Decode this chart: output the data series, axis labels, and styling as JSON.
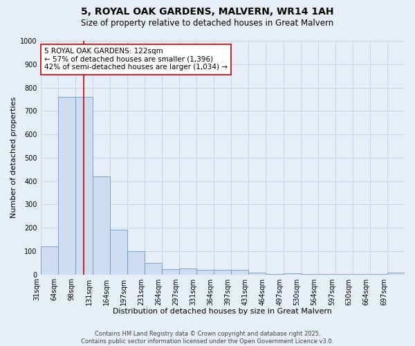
{
  "title": "5, ROYAL OAK GARDENS, MALVERN, WR14 1AH",
  "subtitle": "Size of property relative to detached houses in Great Malvern",
  "xlabel": "Distribution of detached houses by size in Great Malvern",
  "ylabel": "Number of detached properties",
  "bin_labels": [
    "31sqm",
    "64sqm",
    "98sqm",
    "131sqm",
    "164sqm",
    "197sqm",
    "231sqm",
    "264sqm",
    "297sqm",
    "331sqm",
    "364sqm",
    "397sqm",
    "431sqm",
    "464sqm",
    "497sqm",
    "530sqm",
    "564sqm",
    "597sqm",
    "630sqm",
    "664sqm",
    "697sqm"
  ],
  "bar_heights": [
    120,
    760,
    760,
    420,
    190,
    100,
    48,
    22,
    25,
    20,
    20,
    20,
    8,
    3,
    5,
    2,
    2,
    2,
    2,
    2,
    8
  ],
  "bar_color": "#cddcee",
  "bar_edge_color": "#6699cc",
  "vline_bin": 2.5,
  "vline_color": "#cc0000",
  "annotation_line1": "5 ROYAL OAK GARDENS: 122sqm",
  "annotation_line2": "← 57% of detached houses are smaller (1,396)",
  "annotation_line3": "42% of semi-detached houses are larger (1,034) →",
  "annotation_box_color": "white",
  "annotation_box_edge_color": "#cc0000",
  "ylim": [
    0,
    1000
  ],
  "yticks": [
    0,
    100,
    200,
    300,
    400,
    500,
    600,
    700,
    800,
    900,
    1000
  ],
  "grid_color": "#c8d4e4",
  "bg_color": "#e8eef8",
  "footnote_line1": "Contains HM Land Registry data © Crown copyright and database right 2025.",
  "footnote_line2": "Contains public sector information licensed under the Open Government Licence v3.0.",
  "title_fontsize": 10,
  "subtitle_fontsize": 8.5,
  "xlabel_fontsize": 8,
  "ylabel_fontsize": 8,
  "tick_fontsize": 7,
  "annot_fontsize": 7.5,
  "footnote_fontsize": 6
}
